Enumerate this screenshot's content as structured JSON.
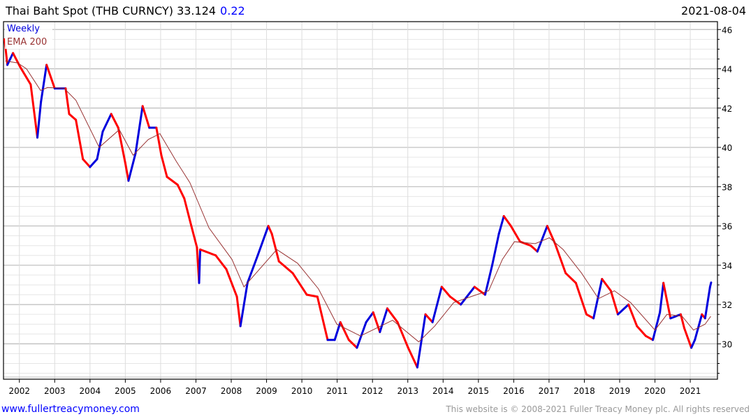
{
  "header": {
    "title": "Thai Baht Spot (THB CURNCY) 33.124",
    "change": "0.22",
    "date": "2021-08-04"
  },
  "footer": {
    "link": "www.fullertreacymoney.com",
    "copyright": "This website is © 2008-2021 Fuller Treacy Money plc. All rights reserved"
  },
  "colors": {
    "up": "#0000dd",
    "down": "#ff0000",
    "ema": "#993333",
    "change": "#0000ff"
  },
  "chart_data": {
    "type": "line",
    "title": "Thai Baht Spot (THB CURNCY)",
    "legend": [
      "Weekly",
      "EMA 200"
    ],
    "legend_placement": "top-left",
    "xlabel": "",
    "ylabel": "",
    "xlim": [
      2001.55,
      2021.77
    ],
    "ylim": [
      28.2,
      46.4
    ],
    "x_ticks": [
      "2002",
      "2003",
      "2004",
      "2005",
      "2006",
      "2007",
      "2008",
      "2009",
      "2010",
      "2011",
      "2012",
      "2013",
      "2014",
      "2015",
      "2016",
      "2017",
      "2018",
      "2019",
      "2020",
      "2021"
    ],
    "y_ticks": [
      "30",
      "32",
      "34",
      "36",
      "38",
      "40",
      "42",
      "44",
      "46"
    ],
    "grid": true,
    "series": [
      {
        "name": "Weekly",
        "x": [
          2001.58,
          2001.66,
          2001.82,
          2002.02,
          2002.32,
          2002.51,
          2002.61,
          2002.77,
          2003.0,
          2003.31,
          2003.41,
          2003.6,
          2003.8,
          2004.0,
          2004.2,
          2004.36,
          2004.6,
          2004.8,
          2005.0,
          2005.09,
          2005.29,
          2005.49,
          2005.68,
          2005.88,
          2006.02,
          2006.18,
          2006.48,
          2006.67,
          2006.87,
          2007.03,
          2007.09,
          2007.12,
          2007.27,
          2007.56,
          2007.86,
          2008.16,
          2008.26,
          2008.46,
          2008.75,
          2009.05,
          2009.15,
          2009.35,
          2009.74,
          2010.14,
          2010.44,
          2010.73,
          2010.93,
          2011.09,
          2011.33,
          2011.56,
          2011.82,
          2012.02,
          2012.21,
          2012.42,
          2012.71,
          2013.01,
          2013.27,
          2013.5,
          2013.7,
          2013.96,
          2014.2,
          2014.5,
          2014.89,
          2015.19,
          2015.39,
          2015.58,
          2015.72,
          2015.92,
          2016.18,
          2016.48,
          2016.67,
          2016.95,
          2017.17,
          2017.47,
          2017.76,
          2018.06,
          2018.26,
          2018.5,
          2018.75,
          2018.95,
          2019.25,
          2019.49,
          2019.74,
          2019.94,
          2020.14,
          2020.24,
          2020.44,
          2020.73,
          2020.83,
          2021.03,
          2021.13,
          2021.33,
          2021.42,
          2021.56,
          2021.59
        ],
        "values": [
          45.5,
          44.2,
          44.8,
          44.1,
          43.2,
          40.5,
          42.3,
          44.2,
          43.0,
          43.0,
          41.7,
          41.4,
          39.4,
          39.0,
          39.4,
          40.8,
          41.7,
          41.0,
          39.2,
          38.3,
          39.7,
          42.1,
          41.0,
          41.0,
          39.6,
          38.5,
          38.1,
          37.4,
          36.0,
          34.9,
          33.1,
          34.8,
          34.7,
          34.5,
          33.8,
          32.4,
          30.9,
          33.1,
          34.5,
          36.0,
          35.6,
          34.2,
          33.6,
          32.5,
          32.4,
          30.2,
          30.2,
          31.1,
          30.2,
          29.8,
          31.1,
          31.6,
          30.6,
          31.8,
          31.1,
          29.8,
          28.8,
          31.5,
          31.1,
          32.9,
          32.4,
          32.0,
          32.9,
          32.5,
          34.0,
          35.6,
          36.5,
          36.0,
          35.2,
          35.0,
          34.7,
          36.0,
          35.1,
          33.6,
          33.1,
          31.5,
          31.3,
          33.3,
          32.7,
          31.5,
          32.0,
          30.9,
          30.4,
          30.2,
          31.6,
          33.1,
          31.3,
          31.5,
          30.8,
          29.8,
          30.2,
          31.5,
          31.3,
          32.9,
          33.12
        ]
      },
      {
        "name": "EMA 200",
        "x": [
          2001.6,
          2001.95,
          2002.2,
          2002.6,
          2002.8,
          2003.27,
          2003.6,
          2004.26,
          2004.83,
          2005.22,
          2005.65,
          2005.98,
          2006.44,
          2006.83,
          2007.37,
          2008.02,
          2008.36,
          2009.29,
          2009.88,
          2010.47,
          2010.99,
          2011.66,
          2012.57,
          2013.31,
          2013.76,
          2014.3,
          2014.95,
          2015.29,
          2015.68,
          2016.02,
          2016.61,
          2017.01,
          2017.4,
          2017.92,
          2018.4,
          2018.85,
          2019.31,
          2020.0,
          2020.34,
          2020.77,
          2021.09,
          2021.42,
          2021.58
        ],
        "values": [
          44.4,
          44.3,
          44.0,
          42.9,
          43.05,
          43.0,
          42.4,
          40.0,
          40.9,
          39.6,
          40.4,
          40.7,
          39.3,
          38.2,
          35.9,
          34.3,
          32.9,
          34.8,
          34.1,
          32.8,
          31.0,
          30.4,
          31.2,
          30.1,
          30.9,
          32.1,
          32.5,
          32.7,
          34.3,
          35.2,
          35.1,
          35.4,
          34.8,
          33.6,
          32.3,
          32.7,
          32.1,
          30.7,
          31.5,
          31.4,
          30.7,
          31.0,
          31.4
        ]
      }
    ]
  }
}
